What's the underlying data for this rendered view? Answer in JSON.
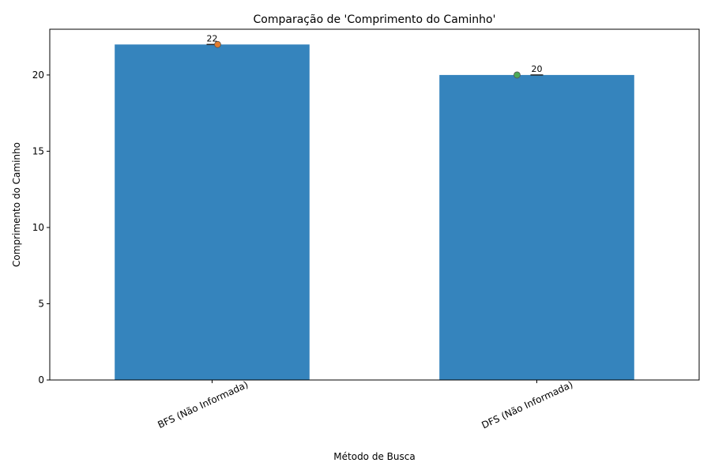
{
  "chart_data": {
    "type": "bar",
    "title": "Comparação de 'Comprimento do Caminho'",
    "xlabel": "Método de Busca",
    "ylabel": "Comprimento do Caminho",
    "categories": [
      "BFS (Não Informada)",
      "DFS (Não Informada)"
    ],
    "values": [
      22,
      20
    ],
    "data_labels": [
      "22",
      "20"
    ],
    "ylim": [
      0,
      23
    ],
    "yticks": [
      0,
      5,
      10,
      15,
      20
    ],
    "grid": false,
    "legend": "none",
    "colors": {
      "bar": "#3584bd",
      "markers": [
        "#e07b2e",
        "#4daa57"
      ],
      "marker_edge": "#555555"
    }
  }
}
